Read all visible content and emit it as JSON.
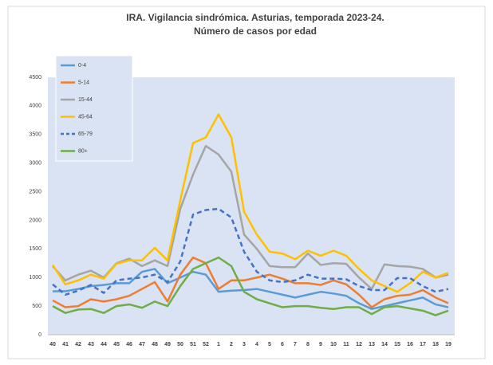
{
  "chart_data": {
    "type": "line",
    "title": "IRA. Vigilancia sindrómica. Asturias, temporada 2023-24. Número de casos por edad",
    "categories": [
      "40",
      "41",
      "42",
      "43",
      "44",
      "45",
      "46",
      "47",
      "48",
      "49",
      "50",
      "51",
      "52",
      "1",
      "2",
      "3",
      "4",
      "5",
      "6",
      "7",
      "8",
      "9",
      "10",
      "11",
      "12",
      "13",
      "14",
      "15",
      "16",
      "17",
      "18",
      "19"
    ],
    "ylim": [
      0,
      4500
    ],
    "yticks": [
      0,
      500,
      1000,
      1500,
      2000,
      2500,
      3000,
      3500,
      4000,
      4500
    ],
    "grid": false,
    "legend": "upper-left",
    "series": [
      {
        "name": "0-4",
        "color": "#5b9bd5",
        "values": [
          760,
          760,
          800,
          850,
          870,
          900,
          900,
          1100,
          1150,
          900,
          1000,
          1100,
          1050,
          750,
          770,
          780,
          800,
          750,
          700,
          650,
          700,
          750,
          720,
          680,
          550,
          450,
          500,
          550,
          600,
          650,
          530,
          480
        ]
      },
      {
        "name": "5-14",
        "color": "#ed7d31",
        "values": [
          600,
          480,
          500,
          620,
          580,
          620,
          680,
          800,
          920,
          580,
          1050,
          1350,
          1250,
          800,
          950,
          950,
          1000,
          1050,
          980,
          900,
          900,
          870,
          950,
          880,
          700,
          480,
          620,
          680,
          700,
          780,
          650,
          550
        ]
      },
      {
        "name": "15-44",
        "color": "#a5a5a5",
        "values": [
          1200,
          950,
          1050,
          1120,
          1000,
          1250,
          1330,
          1200,
          1300,
          1200,
          2200,
          2800,
          3300,
          3150,
          2850,
          1750,
          1500,
          1200,
          1180,
          1180,
          1420,
          1220,
          1250,
          1240,
          1000,
          800,
          1230,
          1200,
          1190,
          1150,
          1000,
          1050
        ]
      },
      {
        "name": "45-64",
        "color": "#ffc000",
        "values": [
          1220,
          880,
          950,
          1050,
          980,
          1240,
          1300,
          1300,
          1520,
          1300,
          2350,
          3350,
          3450,
          3850,
          3450,
          2150,
          1750,
          1450,
          1420,
          1320,
          1470,
          1380,
          1470,
          1380,
          1150,
          950,
          850,
          750,
          900,
          1100,
          1000,
          1080
        ]
      },
      {
        "name": "65-79",
        "color": "#4472c4",
        "dashed": true,
        "values": [
          880,
          700,
          770,
          870,
          730,
          950,
          980,
          1000,
          1050,
          920,
          1280,
          2100,
          2180,
          2200,
          2050,
          1450,
          1100,
          950,
          920,
          950,
          1050,
          980,
          980,
          970,
          850,
          780,
          780,
          990,
          990,
          850,
          750,
          800
        ]
      },
      {
        "name": "80+",
        "color": "#70ad47",
        "values": [
          500,
          380,
          440,
          450,
          380,
          500,
          530,
          470,
          580,
          500,
          850,
          1150,
          1250,
          1350,
          1200,
          750,
          620,
          550,
          480,
          500,
          500,
          470,
          450,
          480,
          480,
          360,
          480,
          500,
          460,
          420,
          340,
          420
        ]
      }
    ]
  }
}
